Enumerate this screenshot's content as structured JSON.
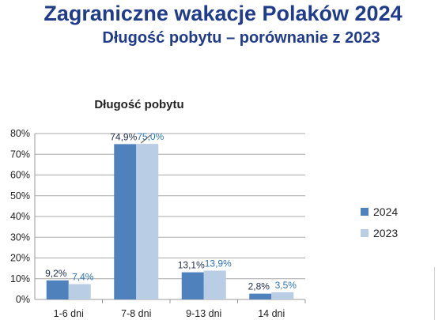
{
  "header": {
    "title": "Zagraniczne wakacje Polaków 2024",
    "subtitle": "Długość pobytu – porównanie z 2023"
  },
  "chart_data": {
    "type": "bar",
    "title": "Długość pobytu",
    "categories": [
      "1-6 dni",
      "7-8 dni",
      "9-13 dni",
      "14 dni"
    ],
    "series": [
      {
        "name": "2024",
        "values": [
          9.2,
          74.9,
          13.1,
          2.8
        ],
        "labels": [
          "9,2%",
          "74,9%",
          "13,1%",
          "2,8%"
        ],
        "color": "#4f81bd",
        "label_color": "#1f2d4a"
      },
      {
        "name": "2023",
        "values": [
          7.4,
          75.0,
          13.9,
          3.5
        ],
        "labels": [
          "7,4%",
          "75,0%",
          "13,9%",
          "3,5%"
        ],
        "color": "#b9cde5",
        "label_color": "#2e75b6"
      }
    ],
    "yticks": [
      "0%",
      "10%",
      "20%",
      "30%",
      "40%",
      "50%",
      "60%",
      "70%",
      "80%"
    ],
    "ylim": [
      0,
      80
    ],
    "grid": true,
    "legend_position": "right"
  }
}
